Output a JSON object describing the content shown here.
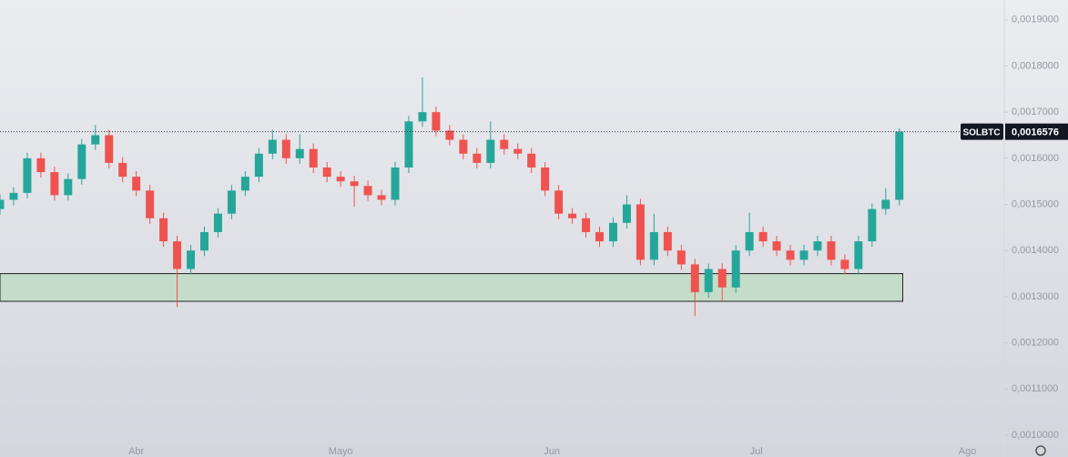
{
  "chart_data": {
    "type": "candlestick",
    "symbol": "SOLBTC",
    "up_color": "#26a69a",
    "down_color": "#ef5350",
    "x": [
      0,
      2,
      4,
      6,
      8,
      10,
      12,
      14,
      16,
      18,
      20,
      22,
      24,
      26,
      28,
      30,
      32,
      34,
      36,
      38,
      40,
      42,
      44,
      46,
      48,
      50,
      52,
      54,
      56,
      58,
      60,
      62,
      64,
      66,
      68,
      70,
      72,
      74,
      76,
      78,
      80,
      82,
      84,
      86,
      88,
      90,
      92,
      94,
      96,
      98,
      100,
      102,
      104,
      106,
      108,
      110,
      112,
      114,
      116,
      118,
      120,
      122,
      124,
      126,
      128,
      130,
      132
    ],
    "open": [
      0.00149,
      0.00151,
      0.001525,
      0.0016,
      0.00157,
      0.00152,
      0.001555,
      0.00163,
      0.00165,
      0.00159,
      0.00156,
      0.00153,
      0.00147,
      0.00142,
      0.00136,
      0.0014,
      0.00144,
      0.00148,
      0.00153,
      0.00156,
      0.00161,
      0.00164,
      0.0016,
      0.00162,
      0.00158,
      0.00156,
      0.00155,
      0.00154,
      0.00152,
      0.00151,
      0.00158,
      0.00168,
      0.0017,
      0.00166,
      0.00164,
      0.00161,
      0.00159,
      0.00164,
      0.00162,
      0.00161,
      0.00158,
      0.00153,
      0.00148,
      0.00147,
      0.00144,
      0.00142,
      0.00146,
      0.0015,
      0.00138,
      0.00144,
      0.0014,
      0.00137,
      0.00131,
      0.00136,
      0.00132,
      0.0014,
      0.00144,
      0.00142,
      0.0014,
      0.00138,
      0.0014,
      0.00142,
      0.00138,
      0.00136,
      0.00142,
      0.00149,
      0.00151
    ],
    "high": [
      0.001522,
      0.001537,
      0.001612,
      0.001612,
      0.001582,
      0.001567,
      0.001642,
      0.001672,
      0.001662,
      0.001602,
      0.001572,
      0.001542,
      0.001482,
      0.001432,
      0.001412,
      0.001452,
      0.001492,
      0.001542,
      0.001572,
      0.001622,
      0.001662,
      0.001652,
      0.001652,
      0.001632,
      0.001592,
      0.001572,
      0.001562,
      0.001552,
      0.001532,
      0.001592,
      0.001692,
      0.001775,
      0.001712,
      0.001672,
      0.001652,
      0.001622,
      0.00168,
      0.001652,
      0.001632,
      0.001622,
      0.001592,
      0.001542,
      0.001492,
      0.001482,
      0.001452,
      0.001472,
      0.00152,
      0.001512,
      0.00148,
      0.001452,
      0.001412,
      0.001382,
      0.001372,
      0.001372,
      0.001412,
      0.001482,
      0.001452,
      0.001432,
      0.001412,
      0.001412,
      0.001432,
      0.001432,
      0.001392,
      0.001432,
      0.001502,
      0.001535,
      0.001665
    ],
    "low": [
      0.001478,
      0.001498,
      0.001513,
      0.001558,
      0.001508,
      0.001508,
      0.001543,
      0.001618,
      0.001578,
      0.001548,
      0.001518,
      0.001458,
      0.001408,
      0.001278,
      0.001348,
      0.001388,
      0.001428,
      0.001468,
      0.001518,
      0.001548,
      0.001598,
      0.001588,
      0.001588,
      0.001568,
      0.001548,
      0.001538,
      0.001495,
      0.001508,
      0.001498,
      0.001498,
      0.001568,
      0.001668,
      0.001648,
      0.001628,
      0.001598,
      0.001578,
      0.001578,
      0.001608,
      0.001598,
      0.001568,
      0.001518,
      0.001468,
      0.001458,
      0.001428,
      0.001408,
      0.001408,
      0.001448,
      0.001368,
      0.001368,
      0.001388,
      0.001358,
      0.001258,
      0.001298,
      0.00129,
      0.001308,
      0.001388,
      0.001408,
      0.001388,
      0.001368,
      0.001368,
      0.001388,
      0.001368,
      0.001348,
      0.001348,
      0.001408,
      0.001478,
      0.001498
    ],
    "close": [
      0.00151,
      0.001525,
      0.0016,
      0.00157,
      0.00152,
      0.001555,
      0.00163,
      0.00165,
      0.00159,
      0.00156,
      0.00153,
      0.00147,
      0.00142,
      0.00136,
      0.0014,
      0.00144,
      0.00148,
      0.00153,
      0.00156,
      0.00161,
      0.00164,
      0.0016,
      0.00162,
      0.00158,
      0.00156,
      0.00155,
      0.00154,
      0.00152,
      0.00151,
      0.00158,
      0.00168,
      0.0017,
      0.00166,
      0.00164,
      0.00161,
      0.00159,
      0.00164,
      0.00162,
      0.00161,
      0.00158,
      0.00153,
      0.00148,
      0.00147,
      0.00144,
      0.00142,
      0.00146,
      0.0015,
      0.00138,
      0.00144,
      0.0014,
      0.00137,
      0.00131,
      0.00136,
      0.00132,
      0.0014,
      0.00144,
      0.00142,
      0.0014,
      0.00138,
      0.0014,
      0.00142,
      0.00138,
      0.00136,
      0.00142,
      0.00149,
      0.00151,
      0.0016576
    ],
    "last_price": 0.0016576,
    "last_price_label": "0,0016576",
    "zone": {
      "from": 0.00129,
      "to": 0.00135,
      "start": 0,
      "end": 132.5,
      "color": "#c5dcc9"
    },
    "xlim": [
      0,
      147
    ],
    "ylim": [
      0.000996,
      0.001943
    ],
    "xticks": [
      {
        "value": 20,
        "label": "Abr"
      },
      {
        "value": 50,
        "label": "Mayo"
      },
      {
        "value": 81,
        "label": "Jun"
      },
      {
        "value": 111,
        "label": "Jul"
      },
      {
        "value": 142,
        "label": "Ago"
      }
    ],
    "yticks": [
      {
        "value": 0.001,
        "label": "0,0010000"
      },
      {
        "value": 0.0011,
        "label": "0,0011000"
      },
      {
        "value": 0.0012,
        "label": "0,0012000"
      },
      {
        "value": 0.0013,
        "label": "0,0013000"
      },
      {
        "value": 0.0014,
        "label": "0,0014000"
      },
      {
        "value": 0.0015,
        "label": "0,0015000"
      },
      {
        "value": 0.0016,
        "label": "0,0016000"
      },
      {
        "value": 0.0017,
        "label": "0,0017000"
      },
      {
        "value": 0.0018,
        "label": "0,0018000"
      },
      {
        "value": 0.0019,
        "label": "0,0019000"
      }
    ]
  }
}
